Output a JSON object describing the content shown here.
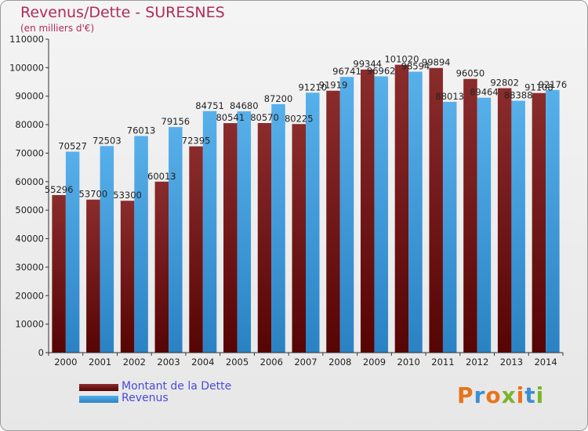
{
  "title": "Revenus/Dette - SURESNES",
  "subtitle": "(en milliers d'€)",
  "legend": {
    "debt_label": "Montant de la Dette",
    "revenue_label": "Revenus"
  },
  "logo": {
    "text": "Proxiti"
  },
  "colors": {
    "debt": "#7a2020",
    "revenue": "#4aa3e0",
    "title": "#b02c55",
    "legend_text": "#4a4ad8"
  },
  "chart_data": {
    "type": "bar",
    "title": "Revenus/Dette - SURESNES",
    "subtitle": "(en milliers d'€)",
    "xlabel": "",
    "ylabel": "",
    "ylim": [
      0,
      110000
    ],
    "yticks": [
      0,
      10000,
      20000,
      30000,
      40000,
      50000,
      60000,
      70000,
      80000,
      90000,
      100000,
      110000
    ],
    "categories": [
      "2000",
      "2001",
      "2002",
      "2003",
      "2004",
      "2005",
      "2006",
      "2007",
      "2008",
      "2009",
      "2010",
      "2011",
      "2012",
      "2013",
      "2014"
    ],
    "series": [
      {
        "name": "Montant de la Dette",
        "values": [
          55296,
          53700,
          53300,
          60013,
          72395,
          80541,
          80570,
          80225,
          91919,
          99344,
          101020,
          99894,
          96050,
          92802,
          91108
        ],
        "labels": [
          "55296",
          "53700",
          "53300",
          "60013",
          "72395",
          "80541",
          "80570",
          "80225",
          "91919",
          "99344",
          "101020",
          "99894",
          "96050",
          "92802",
          "91108"
        ]
      },
      {
        "name": "Revenus",
        "values": [
          70527,
          72503,
          76013,
          79156,
          84751,
          84680,
          87200,
          91210,
          96741,
          96962,
          98594,
          88013,
          89464,
          88388,
          92176
        ],
        "labels": [
          "70527",
          "72503",
          "76013",
          "79156",
          "84751",
          "84680",
          "87200",
          "91210",
          "96741",
          "96962",
          "98594",
          "88013",
          "89464",
          "88388",
          "92176"
        ]
      }
    ],
    "grid": false,
    "legend_position": "bottom-left"
  }
}
